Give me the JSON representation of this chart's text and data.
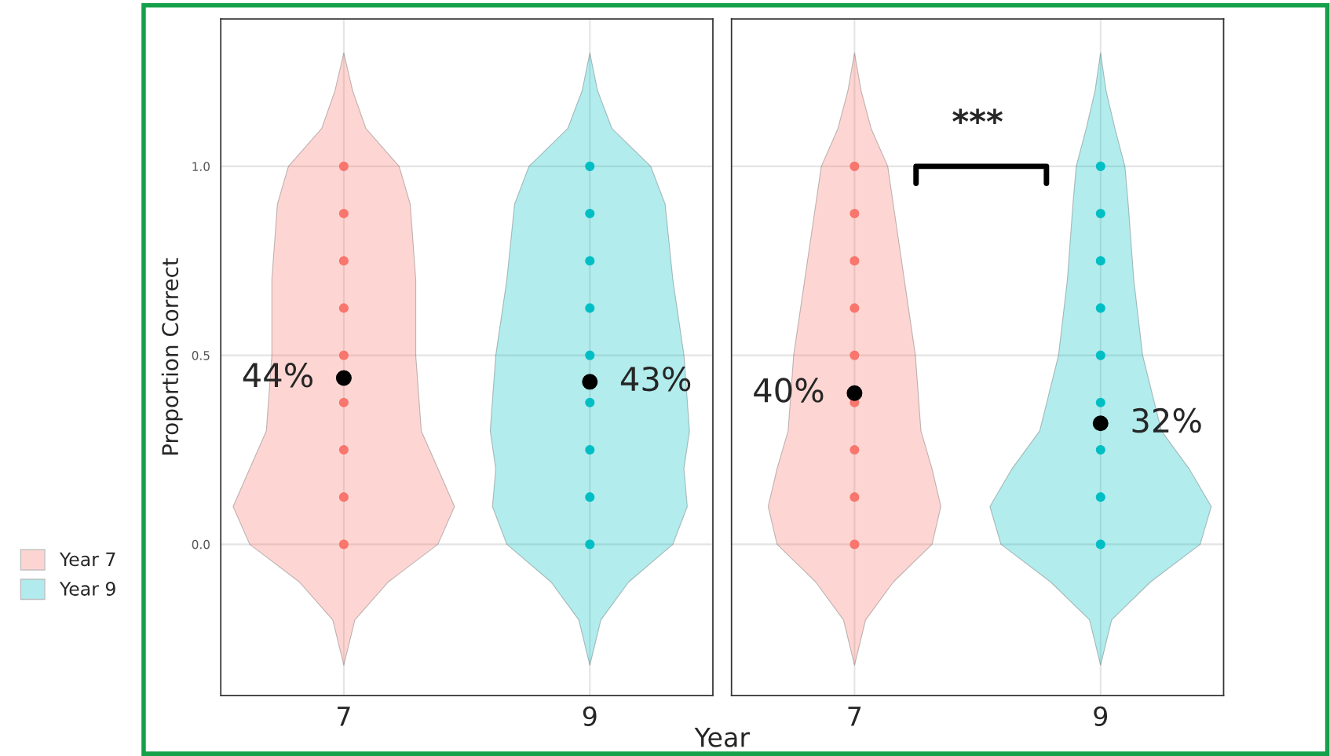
{
  "chart_data": [
    {
      "type": "scatter",
      "ylabel": "Proportion Correct",
      "xlabel": "Year",
      "categories": [
        "7",
        "9"
      ],
      "ylim": [
        -0.4,
        1.39
      ],
      "yticks": [
        {
          "value": 0,
          "label": "0.0"
        },
        {
          "value": 0.5,
          "label": "0.5"
        },
        {
          "value": 1,
          "label": "1.0"
        }
      ],
      "grid": true,
      "legend": "left",
      "marker": "circle",
      "series": [
        {
          "name": "Year 7",
          "color": "#f8766d",
          "x": [
            "7",
            "7",
            "7",
            "7",
            "7",
            "7",
            "7",
            "7",
            "7"
          ],
          "values": [
            0,
            0.125,
            0.25,
            0.375,
            0.5,
            0.625,
            0.75,
            0.875,
            1
          ]
        },
        {
          "name": "Year 9",
          "color": "#00bfc4",
          "x": [
            "9",
            "9",
            "9",
            "9",
            "9",
            "9",
            "9",
            "9",
            "9"
          ],
          "values": [
            0,
            0.125,
            0.25,
            0.375,
            0.5,
            0.625,
            0.75,
            0.875,
            1
          ]
        },
        {
          "color": "#000000",
          "x": [
            "7",
            "9"
          ],
          "values": [
            0.44,
            0.43
          ],
          "value_labels": [
            "44%",
            "43%"
          ]
        }
      ]
    },
    {
      "type": "scatter",
      "categories": [
        "7",
        "9"
      ],
      "ylim": [
        -0.4,
        1.39
      ],
      "tick_labels": "x",
      "grid": true,
      "marker": "circle",
      "annotations": [
        "***"
      ],
      "series": [
        {
          "color": "#f8766d",
          "x": [
            "7",
            "7",
            "7",
            "7",
            "7",
            "7",
            "7",
            "7",
            "7"
          ],
          "values": [
            0,
            0.125,
            0.25,
            0.375,
            0.5,
            0.625,
            0.75,
            0.875,
            1
          ]
        },
        {
          "color": "#00bfc4",
          "x": [
            "9",
            "9",
            "9",
            "9",
            "9",
            "9",
            "9",
            "9",
            "9"
          ],
          "values": [
            0,
            0.125,
            0.25,
            0.375,
            0.5,
            0.625,
            0.75,
            0.875,
            1
          ]
        },
        {
          "color": "#000000",
          "x": [
            "7",
            "9"
          ],
          "values": [
            0.4,
            0.32
          ],
          "value_labels": [
            "40%",
            "32%"
          ]
        }
      ]
    }
  ]
}
